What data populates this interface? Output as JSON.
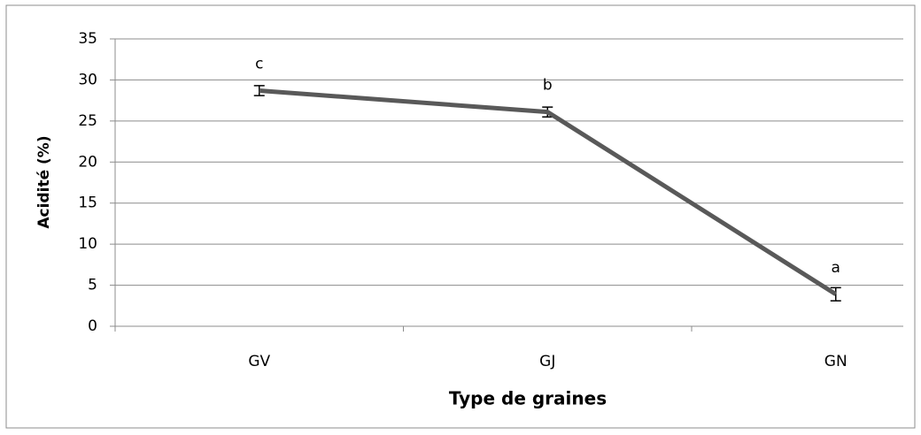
{
  "chart_data": {
    "type": "line",
    "x_label": "Type de graines",
    "y_label": "Acidité (%)",
    "categories": [
      "GV",
      "GJ",
      "GN"
    ],
    "series": [
      {
        "color": "#595959",
        "values": [
          28.7,
          26.1,
          3.9
        ],
        "errors": [
          0.6,
          0.6,
          0.8
        ]
      }
    ],
    "annotations": [
      "c",
      "b",
      "a"
    ],
    "ylim": [
      0,
      35
    ],
    "yticks": [
      0,
      5,
      10,
      15,
      20,
      25,
      30,
      35
    ],
    "grid": true
  }
}
